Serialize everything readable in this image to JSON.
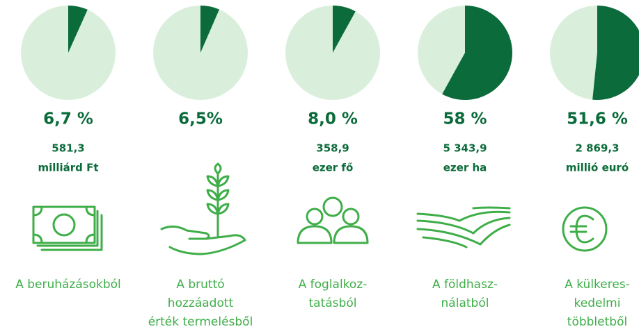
{
  "chart_data": [
    {
      "type": "pie",
      "values": [
        6.7
      ],
      "value_labels": [
        "6,7 %"
      ],
      "amount": [
        "581,3",
        "milliárd Ft"
      ],
      "label": [
        "A beruházásokból"
      ],
      "color": "#0b6b3a",
      "rest_color": "#d9efdc"
    },
    {
      "type": "pie",
      "values": [
        6.5
      ],
      "value_labels": [
        "6,5%"
      ],
      "label": [
        "A bruttó",
        "hozzáadott",
        "érték termelésből"
      ],
      "color": "#0b6b3a",
      "rest_color": "#d9efdc"
    },
    {
      "type": "pie",
      "values": [
        8.0
      ],
      "value_labels": [
        "8,0 %"
      ],
      "amount": [
        "358,9",
        "ezer fő"
      ],
      "label": [
        "A foglalkoz-",
        "tatásból"
      ],
      "color": "#0b6b3a",
      "rest_color": "#d9efdc"
    },
    {
      "type": "pie",
      "values": [
        58
      ],
      "value_labels": [
        "58 %"
      ],
      "amount": [
        "5 343,9",
        "ezer ha"
      ],
      "label": [
        "A földhasz-",
        "nálatból"
      ],
      "color": "#0b6b3a",
      "rest_color": "#d9efdc"
    },
    {
      "type": "pie",
      "values": [
        51.6
      ],
      "value_labels": [
        "51,6 %"
      ],
      "amount": [
        "2 869,3",
        "millió euró"
      ],
      "label": [
        "A külkeres-",
        "kedelmi",
        "többletből"
      ],
      "color": "#0b6b3a",
      "rest_color": "#d9efdc"
    }
  ]
}
